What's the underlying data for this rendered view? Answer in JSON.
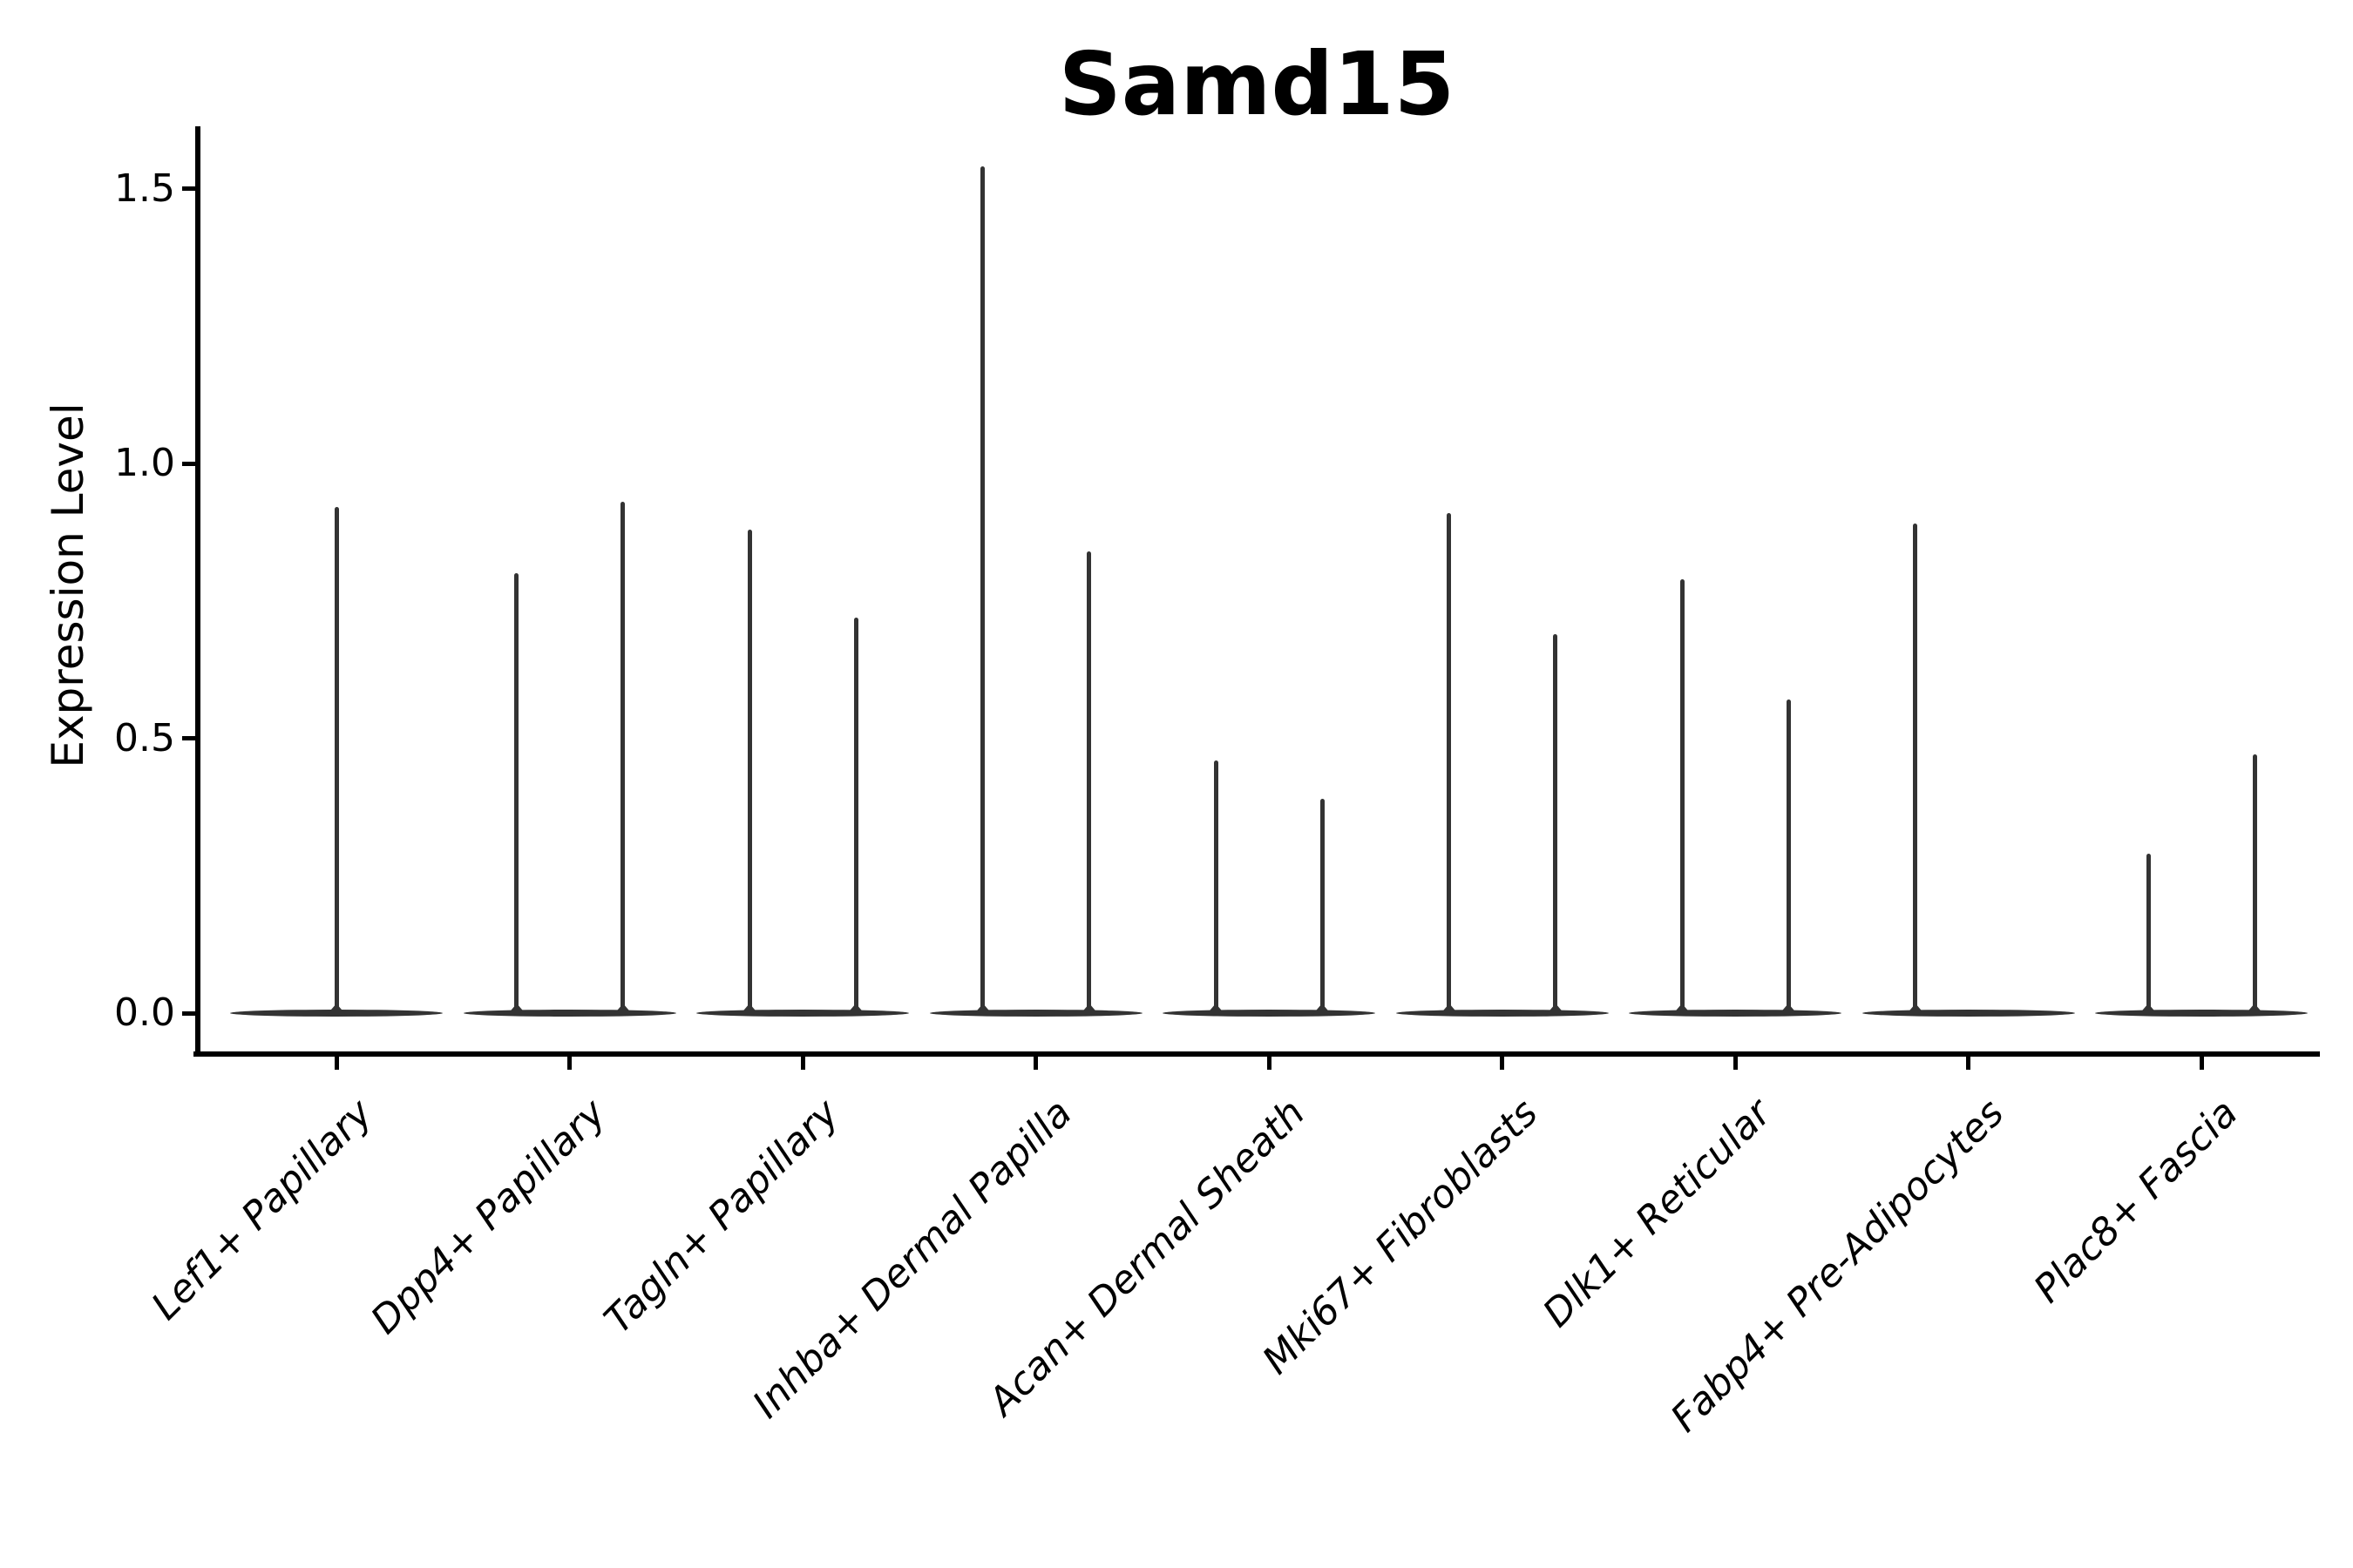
{
  "chart_data": {
    "type": "violin",
    "title": "Samd15",
    "xlabel": "",
    "ylabel": "Expression Level",
    "ylim": [
      -0.07,
      1.62
    ],
    "grid": false,
    "legend": "none",
    "yticks": [
      {
        "label": "0.0",
        "value": 0.0
      },
      {
        "label": "0.5",
        "value": 0.5
      },
      {
        "label": "1.0",
        "value": 1.0
      },
      {
        "label": "1.5",
        "value": 1.5
      }
    ],
    "categories": [
      "Lef1+ Papillary",
      "Dpp4+ Papillary",
      "Tagln+ Papillary",
      "Inhba+ Dermal Papilla",
      "Acan+ Dermal Sheath",
      "Mki67+ Fibroblasts",
      "Dlk1+ Reticular",
      "Fabp4+ Pre-Adipocytes",
      "Plac8+ Fascia"
    ],
    "series": [
      {
        "category": "Lef1+ Papillary",
        "baseline_value": 0.0,
        "spikes": [
          {
            "position": "center",
            "max": 0.92
          }
        ]
      },
      {
        "category": "Dpp4+ Papillary",
        "baseline_value": 0.0,
        "spikes": [
          {
            "position": "left",
            "max": 0.8
          },
          {
            "position": "right",
            "max": 0.93
          }
        ]
      },
      {
        "category": "Tagln+ Papillary",
        "baseline_value": 0.0,
        "spikes": [
          {
            "position": "left",
            "max": 0.88
          },
          {
            "position": "right",
            "max": 0.72
          }
        ]
      },
      {
        "category": "Inhba+ Dermal Papilla",
        "baseline_value": 0.0,
        "spikes": [
          {
            "position": "left",
            "max": 1.54
          },
          {
            "position": "right",
            "max": 0.84
          }
        ]
      },
      {
        "category": "Acan+ Dermal Sheath",
        "baseline_value": 0.0,
        "spikes": [
          {
            "position": "left",
            "max": 0.46
          },
          {
            "position": "right",
            "max": 0.39
          }
        ]
      },
      {
        "category": "Mki67+ Fibroblasts",
        "baseline_value": 0.0,
        "spikes": [
          {
            "position": "left",
            "max": 0.91
          },
          {
            "position": "right",
            "max": 0.69
          }
        ]
      },
      {
        "category": "Dlk1+ Reticular",
        "baseline_value": 0.0,
        "spikes": [
          {
            "position": "left",
            "max": 0.79
          },
          {
            "position": "right",
            "max": 0.57
          }
        ]
      },
      {
        "category": "Fabp4+ Pre-Adipocytes",
        "baseline_value": 0.0,
        "spikes": [
          {
            "position": "left",
            "max": 0.89
          }
        ]
      },
      {
        "category": "Plac8+ Fascia",
        "baseline_value": 0.0,
        "spikes": [
          {
            "position": "left",
            "max": 0.29
          },
          {
            "position": "right",
            "max": 0.47
          }
        ]
      }
    ]
  },
  "colors": {
    "background": "#ffffff",
    "axis": "#000000",
    "text": "#000000",
    "violin": "#333333"
  }
}
